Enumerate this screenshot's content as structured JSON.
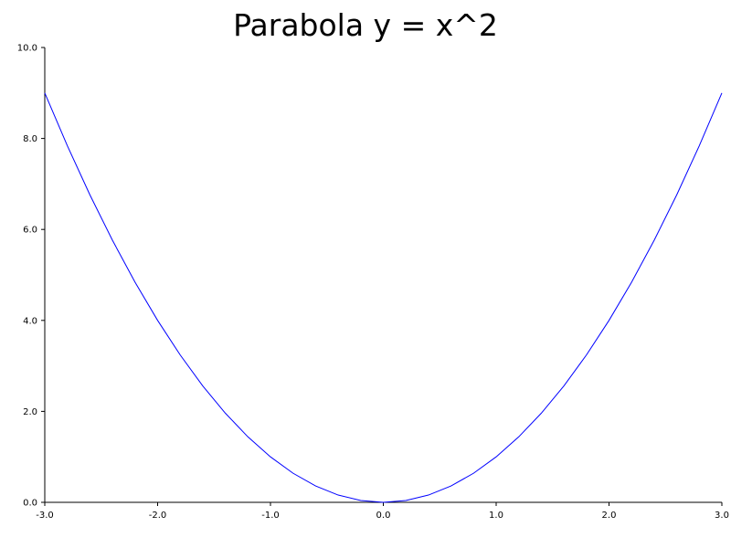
{
  "chart_data": {
    "type": "line",
    "title": "Parabola y = x^2",
    "xlabel": "",
    "ylabel": "",
    "xlim": [
      -3.0,
      3.0
    ],
    "ylim": [
      0.0,
      10.0
    ],
    "grid": false,
    "x_ticks": [
      "-3.0",
      "-2.0",
      "-1.0",
      "0.0",
      "1.0",
      "2.0",
      "3.0"
    ],
    "y_ticks": [
      "0.0",
      "2.0",
      "4.0",
      "6.0",
      "8.0",
      "10.0"
    ],
    "series": [
      {
        "color": "#0000ff",
        "x": [
          -3.0,
          -2.8,
          -2.6,
          -2.4,
          -2.2,
          -2.0,
          -1.8,
          -1.6,
          -1.4,
          -1.2,
          -1.0,
          -0.8,
          -0.6,
          -0.4,
          -0.2,
          0.0,
          0.2,
          0.4,
          0.6,
          0.8,
          1.0,
          1.2,
          1.4,
          1.6,
          1.8,
          2.0,
          2.2,
          2.4,
          2.6,
          2.8,
          3.0
        ],
        "y": [
          9.0,
          7.84,
          6.76,
          5.76,
          4.84,
          4.0,
          3.24,
          2.56,
          1.96,
          1.44,
          1.0,
          0.64,
          0.36,
          0.16,
          0.04,
          0.0,
          0.04,
          0.16,
          0.36,
          0.64,
          1.0,
          1.44,
          1.96,
          2.56,
          3.24,
          4.0,
          4.84,
          5.76,
          6.76,
          7.84,
          9.0
        ]
      }
    ]
  }
}
